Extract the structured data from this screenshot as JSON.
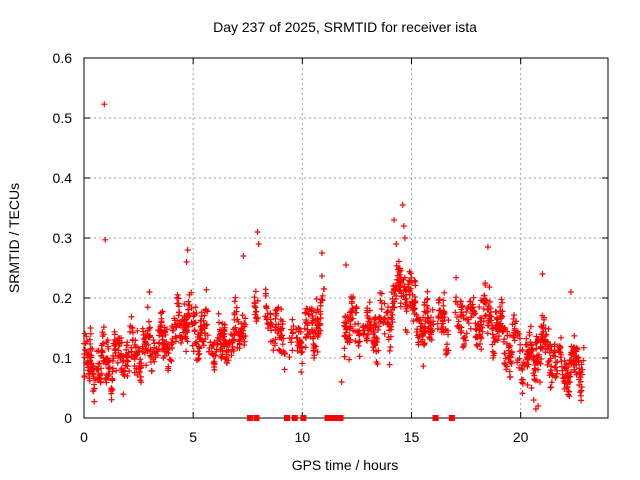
{
  "chart_data": {
    "type": "scatter",
    "title": "Day 237 of 2025, SRMTID for receiver ista",
    "xlabel": "GPS time / hours",
    "ylabel": "SRMTID / TECUs",
    "xlim": [
      0,
      24
    ],
    "ylim": [
      0,
      0.6
    ],
    "xticks": [
      0,
      5,
      10,
      15,
      20
    ],
    "xtick_labels": [
      "0",
      "5",
      "10",
      "15",
      "20"
    ],
    "yticks": [
      0,
      0.1,
      0.2,
      0.3,
      0.4,
      0.5,
      0.6
    ],
    "ytick_labels": [
      "0",
      "0.1",
      "0.2",
      "0.3",
      "0.4",
      "0.5",
      "0.6"
    ],
    "grid": true,
    "marker": "+",
    "color": "#ff0000",
    "series": [
      {
        "name": "SRMTID",
        "trend": [
          [
            0.0,
            0.09
          ],
          [
            0.5,
            0.085
          ],
          [
            1.0,
            0.095
          ],
          [
            1.5,
            0.1
          ],
          [
            2.0,
            0.105
          ],
          [
            2.5,
            0.11
          ],
          [
            3.0,
            0.12
          ],
          [
            3.5,
            0.125
          ],
          [
            4.0,
            0.13
          ],
          [
            4.5,
            0.165
          ],
          [
            5.0,
            0.15
          ],
          [
            5.5,
            0.14
          ],
          [
            6.0,
            0.12
          ],
          [
            6.5,
            0.13
          ],
          [
            7.0,
            0.13
          ],
          [
            7.5,
            0.19
          ],
          [
            8.0,
            0.2
          ],
          [
            8.5,
            0.16
          ],
          [
            9.0,
            0.13
          ],
          [
            9.5,
            0.13
          ],
          [
            10.0,
            0.14
          ],
          [
            10.5,
            0.15
          ],
          [
            11.0,
            0.18
          ],
          [
            11.5,
            0.14
          ],
          [
            12.0,
            0.16
          ],
          [
            12.5,
            0.15
          ],
          [
            13.0,
            0.14
          ],
          [
            13.5,
            0.15
          ],
          [
            14.0,
            0.17
          ],
          [
            14.5,
            0.23
          ],
          [
            15.0,
            0.19
          ],
          [
            15.5,
            0.15
          ],
          [
            16.0,
            0.16
          ],
          [
            16.5,
            0.15
          ],
          [
            17.0,
            0.16
          ],
          [
            17.5,
            0.17
          ],
          [
            18.0,
            0.16
          ],
          [
            18.5,
            0.17
          ],
          [
            19.0,
            0.14
          ],
          [
            19.5,
            0.12
          ],
          [
            20.0,
            0.11
          ],
          [
            20.5,
            0.1
          ],
          [
            21.0,
            0.12
          ],
          [
            21.5,
            0.1
          ],
          [
            22.0,
            0.08
          ],
          [
            22.5,
            0.09
          ],
          [
            22.9,
            0.09
          ]
        ],
        "spread": 0.035,
        "x_range": [
          0,
          22.9
        ],
        "excluded_hours": [
          [
            7.4,
            7.8
          ],
          [
            8.0,
            8.3
          ],
          [
            9.2,
            9.4
          ],
          [
            9.6,
            9.7
          ],
          [
            10.0,
            10.1
          ],
          [
            11.0,
            11.9
          ],
          [
            16.0,
            16.2
          ],
          [
            16.7,
            17.0
          ]
        ],
        "outliers": [
          [
            0.93,
            0.523
          ],
          [
            0.97,
            0.297
          ],
          [
            7.95,
            0.31
          ],
          [
            8.0,
            0.29
          ],
          [
            14.2,
            0.33
          ],
          [
            14.6,
            0.355
          ],
          [
            14.65,
            0.32
          ],
          [
            14.7,
            0.3
          ],
          [
            14.3,
            0.29
          ],
          [
            4.75,
            0.28
          ],
          [
            4.7,
            0.26
          ],
          [
            10.9,
            0.275
          ],
          [
            18.5,
            0.285
          ],
          [
            7.3,
            0.27
          ],
          [
            12.0,
            0.255
          ],
          [
            20.6,
            0.03
          ],
          [
            20.7,
            0.015
          ],
          [
            20.8,
            0.02
          ],
          [
            11.8,
            0.06
          ],
          [
            20.5,
            0.05
          ],
          [
            3.0,
            0.21
          ],
          [
            21.0,
            0.24
          ],
          [
            0.3,
            0.15
          ],
          [
            22.3,
            0.21
          ]
        ]
      },
      {
        "name": "no-data markers",
        "values_at_zero": [
          7.6,
          7.9,
          9.3,
          9.65,
          10.05,
          11.15,
          11.35,
          11.55,
          11.75,
          16.1,
          16.85
        ]
      }
    ]
  }
}
